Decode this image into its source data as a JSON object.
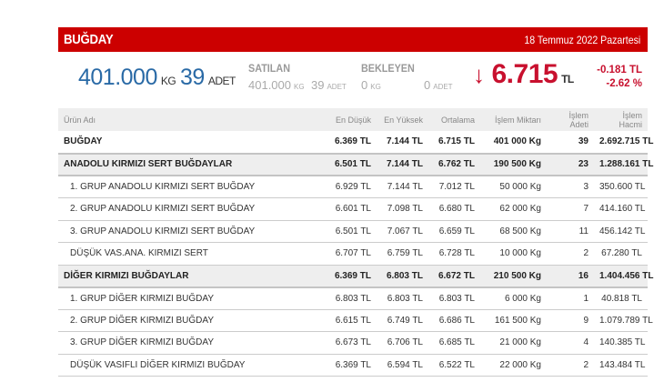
{
  "header": {
    "title": "BUĞDAY",
    "date": "18 Temmuz 2022 Pazartesi",
    "accent_color": "#cc0000"
  },
  "summary": {
    "total_amount": "401.000",
    "total_amount_unit": "KG",
    "total_count": "39",
    "total_count_unit": "ADET",
    "sold": {
      "label": "SATILAN",
      "amount": "401.000",
      "amount_unit": "KG",
      "count": "39",
      "count_unit": "ADET"
    },
    "pending": {
      "label": "BEKLEYEN",
      "amount": "0",
      "amount_unit": "KG",
      "count": "0",
      "count_unit": "ADET"
    },
    "price": {
      "direction_icon": "arrow-down-icon",
      "arrow": "🡓",
      "value": "6.715",
      "unit": "TL",
      "change_abs": "-0.181 TL",
      "change_pct": "-2.62 %",
      "color": "#c8102e"
    }
  },
  "table": {
    "columns": [
      "Ürün Adı",
      "En Düşük",
      "En Yüksek",
      "Ortalama",
      "İşlem Miktarı",
      "İşlem Adeti",
      "İşlem Hacmi"
    ],
    "rows": [
      {
        "type": "total",
        "name": "BUĞDAY",
        "min": "6.369 TL",
        "max": "7.144 TL",
        "avg": "6.715 TL",
        "qty": "401 000 Kg",
        "count": "39",
        "volume": "2.692.715 TL"
      },
      {
        "type": "group",
        "name": "ANADOLU KIRMIZI SERT BUĞDAYLAR",
        "min": "6.501 TL",
        "max": "7.144 TL",
        "avg": "6.762 TL",
        "qty": "190 500 Kg",
        "count": "23",
        "volume": "1.288.161 TL"
      },
      {
        "type": "sub",
        "name": "1. GRUP ANADOLU KIRMIZI SERT BUĞDAY",
        "min": "6.929 TL",
        "max": "7.144 TL",
        "avg": "7.012 TL",
        "qty": "50 000 Kg",
        "count": "3",
        "volume": "350.600 TL"
      },
      {
        "type": "sub",
        "name": "2. GRUP ANADOLU KIRMIZI SERT BUĞDAY",
        "min": "6.601 TL",
        "max": "7.098 TL",
        "avg": "6.680 TL",
        "qty": "62 000 Kg",
        "count": "7",
        "volume": "414.160 TL"
      },
      {
        "type": "sub",
        "name": "3. GRUP ANADOLU KIRMIZI SERT BUĞDAY",
        "min": "6.501 TL",
        "max": "7.067 TL",
        "avg": "6.659 TL",
        "qty": "68 500 Kg",
        "count": "11",
        "volume": "456.142 TL"
      },
      {
        "type": "sub",
        "name": "DÜŞÜK VAS.ANA. KIRMIZI SERT",
        "min": "6.707 TL",
        "max": "6.759 TL",
        "avg": "6.728 TL",
        "qty": "10 000 Kg",
        "count": "2",
        "volume": "67.280 TL"
      },
      {
        "type": "group",
        "name": "DİĞER KIRMIZI BUĞDAYLAR",
        "min": "6.369 TL",
        "max": "6.803 TL",
        "avg": "6.672 TL",
        "qty": "210 500 Kg",
        "count": "16",
        "volume": "1.404.456 TL"
      },
      {
        "type": "sub",
        "name": "1. GRUP DİĞER KIRMIZI BUĞDAY",
        "min": "6.803 TL",
        "max": "6.803 TL",
        "avg": "6.803 TL",
        "qty": "6 000 Kg",
        "count": "1",
        "volume": "40.818 TL"
      },
      {
        "type": "sub",
        "name": "2. GRUP DİĞER KIRMIZI BUĞDAY",
        "min": "6.615 TL",
        "max": "6.749 TL",
        "avg": "6.686 TL",
        "qty": "161 500 Kg",
        "count": "9",
        "volume": "1.079.789 TL"
      },
      {
        "type": "sub",
        "name": "3. GRUP DİĞER KIRMIZI BUĞDAY",
        "min": "6.673 TL",
        "max": "6.706 TL",
        "avg": "6.685 TL",
        "qty": "21 000 Kg",
        "count": "4",
        "volume": "140.385 TL"
      },
      {
        "type": "sub",
        "name": "DÜŞÜK VASIFLI DİĞER KIRMIZI BUĞDAY",
        "min": "6.369 TL",
        "max": "6.594 TL",
        "avg": "6.522 TL",
        "qty": "22 000 Kg",
        "count": "2",
        "volume": "143.484 TL"
      }
    ]
  }
}
